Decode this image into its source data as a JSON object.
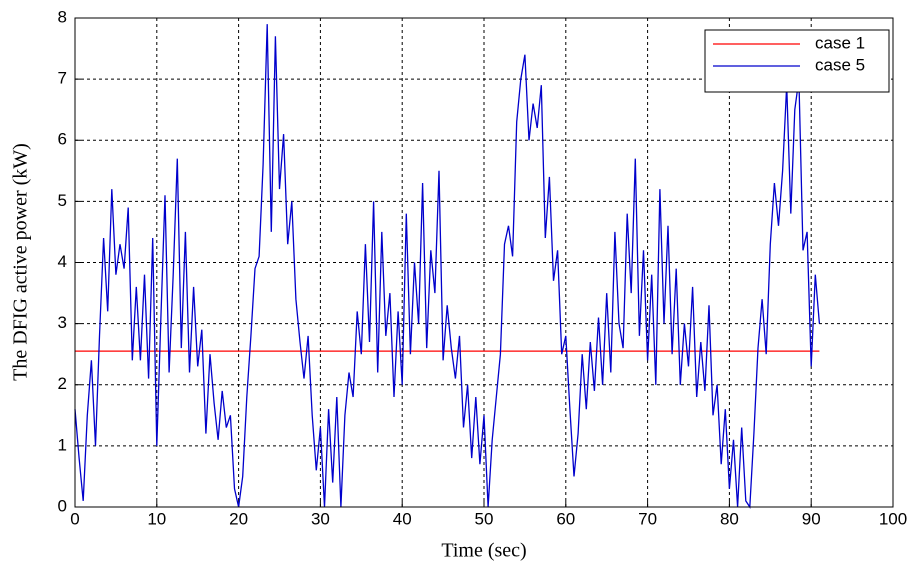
{
  "chart_data": {
    "type": "line",
    "xlabel": "Time (sec)",
    "ylabel": "The DFIG active power (kW)",
    "xlim": [
      0,
      100
    ],
    "xticks": [
      0,
      10,
      20,
      30,
      40,
      50,
      60,
      70,
      80,
      90,
      100
    ],
    "ylim": [
      0,
      8
    ],
    "yticks": [
      0,
      1,
      2,
      3,
      4,
      5,
      6,
      7,
      8
    ],
    "grid": true,
    "legend": "upper right",
    "series": [
      {
        "name": "case 1",
        "color": "#ff0000",
        "x": [
          0,
          91
        ],
        "values": [
          2.55,
          2.55
        ]
      },
      {
        "name": "case 5",
        "color": "#0000cc",
        "x": [
          0,
          0.5,
          1,
          1.5,
          2,
          2.5,
          3,
          3.5,
          4,
          4.5,
          5,
          5.5,
          6,
          6.5,
          7,
          7.5,
          8,
          8.5,
          9,
          9.5,
          10,
          10.5,
          11,
          11.5,
          12,
          12.5,
          13,
          13.5,
          14,
          14.5,
          15,
          15.5,
          16,
          16.5,
          17,
          17.5,
          18,
          18.5,
          19,
          19.5,
          20,
          20.5,
          21,
          21.5,
          22,
          22.5,
          23,
          23.5,
          24,
          24.5,
          25,
          25.5,
          26,
          26.5,
          27,
          27.5,
          28,
          28.5,
          29,
          29.5,
          30,
          30.5,
          31,
          31.5,
          32,
          32.5,
          33,
          33.5,
          34,
          34.5,
          35,
          35.5,
          36,
          36.5,
          37,
          37.5,
          38,
          38.5,
          39,
          39.5,
          40,
          40.5,
          41,
          41.5,
          42,
          42.5,
          43,
          43.5,
          44,
          44.5,
          45,
          45.5,
          46,
          46.5,
          47,
          47.5,
          48,
          48.5,
          49,
          49.5,
          50,
          50.5,
          51,
          51.5,
          52,
          52.5,
          53,
          53.5,
          54,
          54.5,
          55,
          55.5,
          56,
          56.5,
          57,
          57.5,
          58,
          58.5,
          59,
          59.5,
          60,
          60.5,
          61,
          61.5,
          62,
          62.5,
          63,
          63.5,
          64,
          64.5,
          65,
          65.5,
          66,
          66.5,
          67,
          67.5,
          68,
          68.5,
          69,
          69.5,
          70,
          70.5,
          71,
          71.5,
          72,
          72.5,
          73,
          73.5,
          74,
          74.5,
          75,
          75.5,
          76,
          76.5,
          77,
          77.5,
          78,
          78.5,
          79,
          79.5,
          80,
          80.5,
          81,
          81.5,
          82,
          82.5,
          83,
          83.5,
          84,
          84.5,
          85,
          85.5,
          86,
          86.5,
          87,
          87.5,
          88,
          88.5,
          89,
          89.5,
          90,
          90.5,
          91
        ],
        "values": [
          1.6,
          0.8,
          0.1,
          1.5,
          2.4,
          1.0,
          2.8,
          4.4,
          3.2,
          5.2,
          3.8,
          4.3,
          3.9,
          4.9,
          2.4,
          3.6,
          2.4,
          3.8,
          2.1,
          4.4,
          1.0,
          3.1,
          5.1,
          2.2,
          3.8,
          5.7,
          2.6,
          4.5,
          2.2,
          3.6,
          2.3,
          2.9,
          1.2,
          2.5,
          1.7,
          1.1,
          1.9,
          1.3,
          1.5,
          0.3,
          0.0,
          0.5,
          1.8,
          2.8,
          3.9,
          4.1,
          5.6,
          7.9,
          4.5,
          7.7,
          5.2,
          6.1,
          4.3,
          5.0,
          3.4,
          2.7,
          2.1,
          2.8,
          1.5,
          0.6,
          1.3,
          0.0,
          1.6,
          0.4,
          1.8,
          0.0,
          1.5,
          2.2,
          1.8,
          3.2,
          2.5,
          4.3,
          2.7,
          5.0,
          2.2,
          4.5,
          2.8,
          3.5,
          1.8,
          3.2,
          2.0,
          4.8,
          2.5,
          4.0,
          3.0,
          5.3,
          2.6,
          4.2,
          3.5,
          5.5,
          2.4,
          3.3,
          2.6,
          2.1,
          2.8,
          1.3,
          2.0,
          0.8,
          1.8,
          0.7,
          1.5,
          0.0,
          1.1,
          1.8,
          2.5,
          4.3,
          4.6,
          4.1,
          6.3,
          7.0,
          7.4,
          6.0,
          6.6,
          6.2,
          6.9,
          4.4,
          5.4,
          3.7,
          4.2,
          2.5,
          2.8,
          1.6,
          0.5,
          1.2,
          2.5,
          1.6,
          2.7,
          1.9,
          3.1,
          2.0,
          3.5,
          2.2,
          4.5,
          3.0,
          2.6,
          4.8,
          3.5,
          5.7,
          2.8,
          4.2,
          2.4,
          3.8,
          2.0,
          5.2,
          3.0,
          4.6,
          2.5,
          3.9,
          2.0,
          3.0,
          2.3,
          3.6,
          1.8,
          2.7,
          1.9,
          3.3,
          1.5,
          2.0,
          0.7,
          1.6,
          0.3,
          1.1,
          0.0,
          1.3,
          0.1,
          0.0,
          1.2,
          2.6,
          3.4,
          2.5,
          4.3,
          5.3,
          4.6,
          5.5,
          6.9,
          4.8,
          6.5,
          7.0,
          4.2,
          4.5,
          2.3,
          3.8,
          3.0
        ]
      }
    ]
  }
}
